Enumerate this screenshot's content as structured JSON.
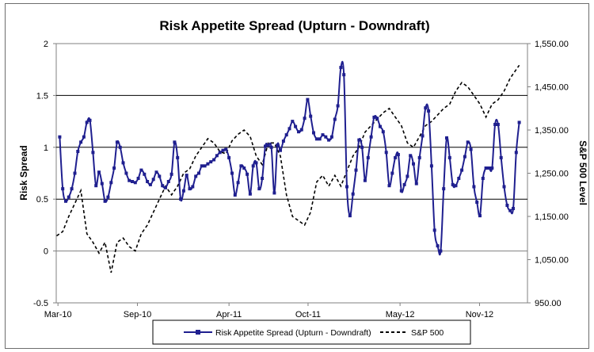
{
  "chart_data": {
    "type": "line",
    "title": "Risk Appetite Spread (Upturn - Downdraft)",
    "ylabel_left": "Risk Spread",
    "ylabel_right": "S&P 500 Level",
    "x_tick_labels": [
      "Mar-10",
      "Sep-10",
      "Apr-11",
      "Oct-11",
      "May-12",
      "Nov-12"
    ],
    "x_tick_dates": [
      "2010-03",
      "2010-09",
      "2011-04",
      "2011-10",
      "2012-05",
      "2012-11"
    ],
    "y_left": {
      "min": -0.5,
      "max": 2,
      "ticks": [
        -0.5,
        0,
        0.5,
        1,
        1.5,
        2
      ],
      "tick_labels": [
        "-0.5",
        "0",
        "0.5",
        "1",
        "1.5",
        "2"
      ]
    },
    "y_right": {
      "min": 950,
      "max": 1550,
      "ticks": [
        950,
        1050,
        1150,
        1250,
        1350,
        1450,
        1550
      ],
      "tick_labels": [
        "950.00",
        "1,050.00",
        "1,150.00",
        "1,250.00",
        "1,350.00",
        "1,450.00",
        "1,550.00"
      ]
    },
    "gridlines": "horizontal at 0.5, 1, 1.5",
    "legend": {
      "position": "bottom",
      "entries": [
        "Risk Appetite Spread (Upturn - Downdraft)",
        "S&P 500"
      ]
    },
    "series": [
      {
        "name": "Risk Appetite Spread (Upturn - Downdraft)",
        "axis": "left",
        "color": "#1f1f8f",
        "style": "solid with square markers",
        "x": [
          "2010-03-05",
          "2010-03-12",
          "2010-03-19",
          "2010-03-26",
          "2010-04-02",
          "2010-04-09",
          "2010-04-16",
          "2010-04-23",
          "2010-04-30",
          "2010-05-07",
          "2010-05-14",
          "2010-05-21",
          "2010-05-28",
          "2010-06-04",
          "2010-06-11",
          "2010-06-18",
          "2010-06-25",
          "2010-07-02",
          "2010-07-09",
          "2010-07-16",
          "2010-07-23",
          "2010-07-30",
          "2010-08-06",
          "2010-08-13",
          "2010-08-20",
          "2010-08-27",
          "2010-09-03",
          "2010-09-10",
          "2010-09-17",
          "2010-09-24",
          "2010-10-01",
          "2010-10-08",
          "2010-10-15",
          "2010-10-22",
          "2010-10-29",
          "2010-11-05",
          "2010-11-12",
          "2010-11-19",
          "2010-11-26",
          "2010-12-03",
          "2010-12-10",
          "2010-12-17",
          "2010-12-24",
          "2010-12-31",
          "2011-01-07",
          "2011-01-14",
          "2011-01-21",
          "2011-01-28",
          "2011-02-04",
          "2011-02-11",
          "2011-02-18",
          "2011-02-25",
          "2011-03-04",
          "2011-03-11",
          "2011-03-18",
          "2011-03-25",
          "2011-04-01",
          "2011-04-08",
          "2011-04-15",
          "2011-04-22",
          "2011-04-29",
          "2011-05-06",
          "2011-05-13",
          "2011-05-20",
          "2011-05-27",
          "2011-06-03",
          "2011-06-10",
          "2011-06-17",
          "2011-06-24",
          "2011-07-01",
          "2011-07-08",
          "2011-07-15",
          "2011-07-22",
          "2011-07-29",
          "2011-08-05",
          "2011-08-12",
          "2011-08-19",
          "2011-08-26",
          "2011-09-02",
          "2011-09-09",
          "2011-09-16",
          "2011-09-23",
          "2011-09-30",
          "2011-10-07",
          "2011-10-14",
          "2011-10-21",
          "2011-10-28",
          "2011-11-04",
          "2011-11-11",
          "2011-11-18",
          "2011-11-25",
          "2011-12-02",
          "2011-12-09",
          "2011-12-16",
          "2011-12-23",
          "2011-12-30",
          "2012-01-06",
          "2012-01-13",
          "2012-01-20",
          "2012-01-27",
          "2012-02-03",
          "2012-02-10",
          "2012-02-17",
          "2012-02-24",
          "2012-03-02",
          "2012-03-09",
          "2012-03-16",
          "2012-03-23",
          "2012-03-30",
          "2012-04-06",
          "2012-04-13",
          "2012-04-20",
          "2012-04-27",
          "2012-05-04",
          "2012-05-11",
          "2012-05-18",
          "2012-05-25",
          "2012-06-01",
          "2012-06-08",
          "2012-06-15",
          "2012-06-22",
          "2012-06-29",
          "2012-07-06",
          "2012-07-13",
          "2012-07-20",
          "2012-07-27",
          "2012-08-03",
          "2012-08-10",
          "2012-08-17",
          "2012-08-24",
          "2012-08-31",
          "2012-09-07",
          "2012-09-14",
          "2012-09-21",
          "2012-09-28",
          "2012-10-05",
          "2012-10-12",
          "2012-10-19",
          "2012-10-26",
          "2012-11-02",
          "2012-11-09",
          "2012-11-16",
          "2012-11-23",
          "2012-11-30",
          "2012-12-07",
          "2012-12-14",
          "2012-12-21",
          "2012-12-28",
          "2013-01-04",
          "2013-01-11",
          "2013-01-18",
          "2013-01-25",
          "2013-02-01"
        ],
        "values": [
          1.1,
          0.6,
          0.48,
          0.52,
          0.6,
          0.75,
          0.96,
          1.05,
          1.1,
          1.24,
          1.26,
          0.95,
          0.63,
          0.76,
          0.65,
          0.48,
          0.52,
          0.66,
          0.8,
          1.05,
          1.0,
          0.85,
          0.75,
          0.68,
          0.67,
          0.66,
          0.7,
          0.78,
          0.74,
          0.67,
          0.64,
          0.69,
          0.76,
          0.72,
          0.63,
          0.61,
          0.67,
          0.74,
          1.05,
          0.9,
          0.5,
          0.58,
          0.73,
          0.6,
          0.62,
          0.72,
          0.75,
          0.82,
          0.82,
          0.84,
          0.86,
          0.88,
          0.92,
          0.95,
          0.97,
          0.98,
          0.9,
          0.75,
          0.54,
          0.66,
          0.82,
          0.8,
          0.74,
          0.55,
          0.82,
          0.85,
          0.6,
          0.7,
          1.01,
          1.02,
          1.0,
          0.56,
          1.02,
          0.97,
          1.06,
          1.12,
          1.18,
          1.25,
          1.2,
          1.15,
          1.17,
          1.28,
          1.46,
          1.3,
          1.14,
          1.08,
          1.08,
          1.12,
          1.1,
          1.07,
          1.1,
          1.27,
          1.4,
          1.77,
          1.7,
          0.62,
          0.34,
          0.55,
          0.78,
          1.07,
          1.0,
          0.68,
          0.9,
          1.1,
          1.29,
          1.28,
          1.2,
          1.15,
          0.95,
          0.63,
          0.75,
          0.9,
          0.93,
          0.58,
          0.64,
          0.72,
          0.92,
          0.84,
          0.65,
          0.9,
          1.11,
          1.38,
          1.35,
          0.82,
          0.2,
          0.05,
          0.0,
          0.6,
          1.09,
          0.9,
          0.64,
          0.63,
          0.7,
          0.78,
          0.91,
          1.05,
          0.98,
          0.62,
          0.47,
          0.34,
          0.7,
          0.8,
          0.8,
          0.8,
          1.22,
          1.22,
          0.9,
          0.62,
          0.44,
          0.39,
          0.41,
          0.95,
          1.24
        ]
      },
      {
        "name": "S&P 500",
        "axis": "right",
        "color": "#000000",
        "style": "dashed",
        "x": [
          "2010-02-26",
          "2010-03-12",
          "2010-03-26",
          "2010-04-09",
          "2010-04-23",
          "2010-05-07",
          "2010-05-21",
          "2010-06-04",
          "2010-06-18",
          "2010-07-02",
          "2010-07-16",
          "2010-07-30",
          "2010-08-13",
          "2010-08-27",
          "2010-09-10",
          "2010-09-24",
          "2010-10-08",
          "2010-10-22",
          "2010-11-05",
          "2010-11-19",
          "2010-12-03",
          "2010-12-17",
          "2010-12-31",
          "2011-01-14",
          "2011-01-28",
          "2011-02-11",
          "2011-02-25",
          "2011-03-11",
          "2011-03-25",
          "2011-04-08",
          "2011-04-22",
          "2011-05-06",
          "2011-05-20",
          "2011-06-03",
          "2011-06-17",
          "2011-07-01",
          "2011-07-15",
          "2011-07-29",
          "2011-08-12",
          "2011-08-26",
          "2011-09-09",
          "2011-09-23",
          "2011-10-07",
          "2011-10-21",
          "2011-11-04",
          "2011-11-18",
          "2011-12-02",
          "2011-12-16",
          "2011-12-30",
          "2012-01-13",
          "2012-01-27",
          "2012-02-10",
          "2012-02-24",
          "2012-03-09",
          "2012-03-23",
          "2012-04-06",
          "2012-04-20",
          "2012-05-04",
          "2012-05-18",
          "2012-06-01",
          "2012-06-15",
          "2012-06-29",
          "2012-07-13",
          "2012-07-27",
          "2012-08-10",
          "2012-08-24",
          "2012-09-07",
          "2012-09-21",
          "2012-10-05",
          "2012-10-19",
          "2012-11-02",
          "2012-11-16",
          "2012-11-30",
          "2012-12-14",
          "2012-12-28",
          "2013-01-11",
          "2013-01-25",
          "2013-02-01"
        ],
        "values": [
          1105,
          1115,
          1150,
          1180,
          1210,
          1110,
          1090,
          1065,
          1090,
          1020,
          1090,
          1100,
          1080,
          1070,
          1110,
          1130,
          1160,
          1190,
          1220,
          1200,
          1220,
          1250,
          1260,
          1290,
          1310,
          1330,
          1320,
          1300,
          1295,
          1325,
          1340,
          1350,
          1335,
          1290,
          1270,
          1320,
          1320,
          1290,
          1200,
          1150,
          1140,
          1130,
          1160,
          1230,
          1245,
          1220,
          1245,
          1220,
          1255,
          1290,
          1310,
          1345,
          1360,
          1375,
          1390,
          1400,
          1380,
          1360,
          1320,
          1310,
          1335,
          1360,
          1370,
          1385,
          1400,
          1410,
          1440,
          1460,
          1450,
          1430,
          1410,
          1380,
          1410,
          1420,
          1440,
          1470,
          1490,
          1500
        ]
      }
    ]
  }
}
